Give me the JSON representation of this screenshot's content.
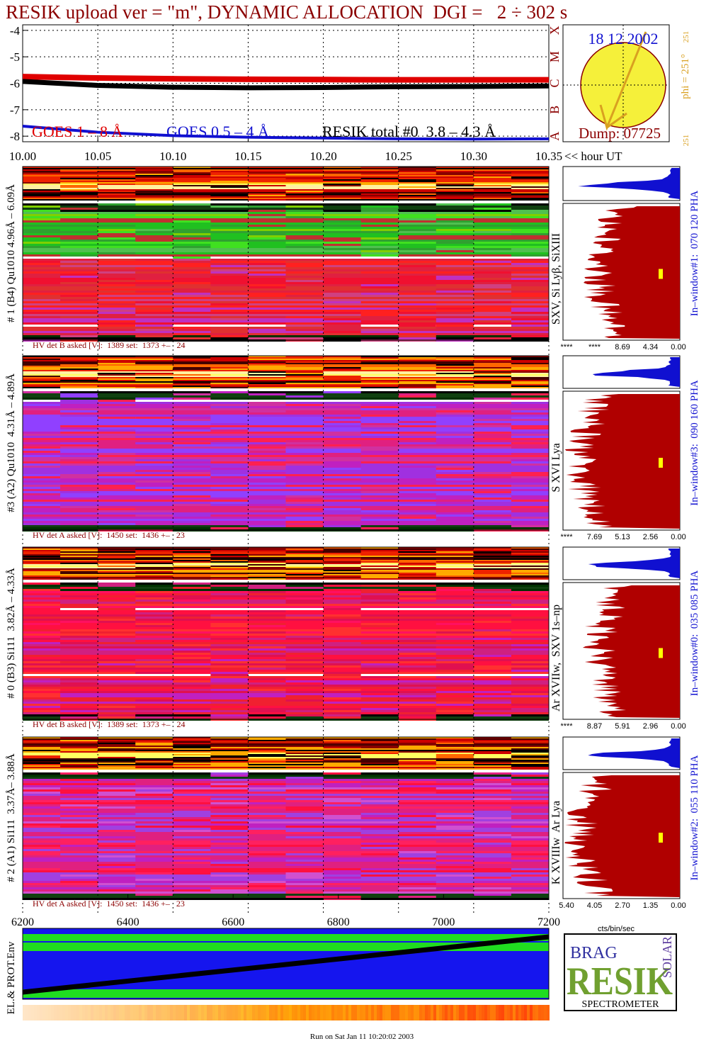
{
  "title": "RESIK upload ver = \"m\", DYNAMIC ALLOCATION  DGI =   2 ÷ 302 s",
  "lightcurve": {
    "xlim": [
      10.0,
      10.35
    ],
    "ylim": [
      -8.21,
      -3.79
    ],
    "yticks": [
      -4,
      -5,
      -6,
      -7,
      -8
    ],
    "xticks": [
      {
        "value": 10.0,
        "label": "10.00"
      },
      {
        "value": 10.05,
        "label": "10.05"
      },
      {
        "value": 10.1,
        "label": "10.10"
      },
      {
        "value": 10.15,
        "label": "10.15"
      },
      {
        "value": 10.2,
        "label": "10.20"
      },
      {
        "value": 10.25,
        "label": "10.25"
      },
      {
        "value": 10.3,
        "label": "10.30"
      },
      {
        "value": 10.35,
        "label": "10.35"
      }
    ],
    "x_label": "<< hour UT",
    "x": [
      10.0,
      10.05,
      10.1,
      10.15,
      10.2,
      10.25,
      10.3,
      10.35
    ],
    "series": [
      {
        "name": "GOES 1 – 8 Å",
        "color": "#e00000",
        "values": [
          -5.75,
          -5.8,
          -5.83,
          -5.85,
          -5.86,
          -5.87,
          -5.87,
          -5.87
        ]
      },
      {
        "name": "GOES 0.5 – 4 Å",
        "color": "#1010d0",
        "values": [
          -7.62,
          -7.85,
          -7.98,
          -8.04,
          -8.07,
          -8.1,
          -8.11,
          -8.1
        ]
      },
      {
        "name": "RESIK total #0  3.8 – 4.3 Å",
        "color": "#000000",
        "values": [
          -5.93,
          -6.08,
          -6.15,
          -6.17,
          -6.16,
          -6.13,
          -6.12,
          -6.1
        ]
      }
    ]
  },
  "sun": {
    "date": "18 12 2002",
    "dump": "Dump: 07725",
    "phi": "phi = 251°",
    "phi_top": "251",
    "phi_bottom": "251",
    "goes_classes": [
      "X",
      "M",
      "C",
      "B",
      "A"
    ]
  },
  "panels": [
    {
      "label": "# 1 (B4) Qu1010 4.96Å – 6.09Å",
      "hv": "HV det B asked [V]:  1389 set:  1373 +–   24",
      "lines": "SXV, Si Lyβ, SiXIII",
      "window": "In–window#1:  070 120 PHA",
      "hist_ticks": [
        "****",
        "****",
        "8.69",
        "4.34",
        "0.00"
      ]
    },
    {
      "label": "#3 (A2) Qu1010  4.31Å – 4.89Å",
      "hv": "HV det A asked [V]:  1450 set:  1436 +–   23",
      "lines": "S XVI Lya",
      "window": "In–window#3:  090 160 PHA",
      "hist_ticks": [
        "****",
        "7.69",
        "5.13",
        "2.56",
        "0.00"
      ]
    },
    {
      "label": "# 0 (B3) Si111  3.82Å – 4.33Å",
      "hv": "HV det B asked [V]:  1389 set:  1373 +–   24",
      "lines": "Ar XVIIw,  SXV 1s–np",
      "window": "In–window#0:  035 085 PHA",
      "hist_ticks": [
        "****",
        "8.87",
        "5.91",
        "2.96",
        "0.00"
      ]
    },
    {
      "label": "# 2 (A1) Si111  3.37Å– 3.88Å",
      "hv": "HV det A asked [V]:  1450 set:  1436 +–   23",
      "lines": "K XVIIIw  Ar Lya",
      "window": "In–window#2:  055 110 PHA",
      "hist_ticks": [
        "5.40",
        "4.05",
        "2.70",
        "1.35",
        "0.00"
      ]
    }
  ],
  "hist_unit": "cts/bin/sec",
  "channel_axis": {
    "xlim": [
      6200,
      7200
    ],
    "xticks": [
      6200,
      6400,
      6600,
      6800,
      7000,
      7200
    ]
  },
  "env_label": "EL.& PROT.Env",
  "logo": {
    "top": "BRAG",
    "main": "RESIK",
    "side": "SOLAR",
    "bottom": "SPECTROMETER"
  },
  "footer": "Run on Sat Jan 11 10:20:02 2003"
}
